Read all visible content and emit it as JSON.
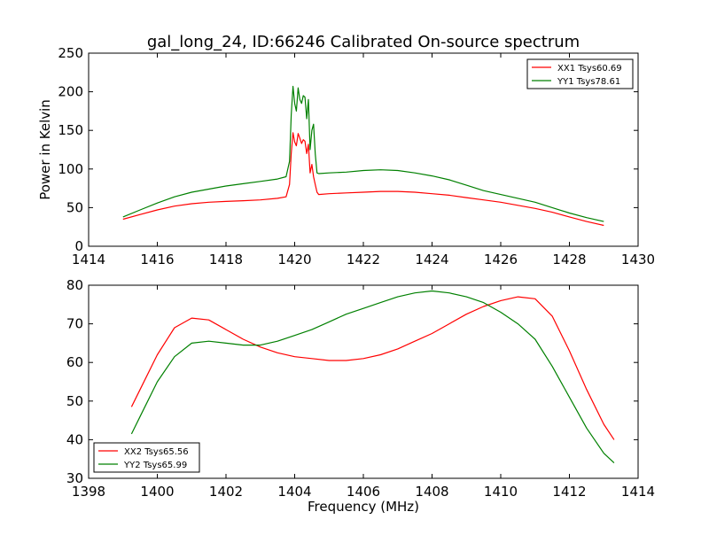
{
  "figure": {
    "title": "gal_long_24, ID:66246 Calibrated On-source spectrum",
    "background": "#ffffff"
  },
  "chart_data": [
    {
      "type": "line",
      "title": "gal_long_24, ID:66246 Calibrated On-source spectrum",
      "xlabel": "",
      "ylabel": "Power in Kelvin",
      "xlim": [
        1414,
        1430
      ],
      "ylim": [
        0,
        250
      ],
      "xticks": [
        1414,
        1416,
        1418,
        1420,
        1422,
        1424,
        1426,
        1428,
        1430
      ],
      "yticks": [
        0,
        50,
        100,
        150,
        200,
        250
      ],
      "grid": false,
      "legend_position": "top-right",
      "series": [
        {
          "name": "XX1 Tsys60.69",
          "color": "#ff0000",
          "x": [
            1415.0,
            1415.5,
            1416.0,
            1416.5,
            1417.0,
            1417.5,
            1418.0,
            1418.5,
            1419.0,
            1419.5,
            1419.75,
            1419.85,
            1419.9,
            1419.95,
            1420.0,
            1420.05,
            1420.1,
            1420.15,
            1420.2,
            1420.25,
            1420.3,
            1420.35,
            1420.4,
            1420.45,
            1420.5,
            1420.55,
            1420.6,
            1420.65,
            1420.7,
            1421.0,
            1421.5,
            1422.0,
            1422.5,
            1423.0,
            1423.5,
            1424.0,
            1424.5,
            1425.0,
            1425.5,
            1426.0,
            1426.5,
            1427.0,
            1427.5,
            1428.0,
            1428.5,
            1429.0
          ],
          "y": [
            35,
            41,
            47,
            52,
            55,
            57,
            58,
            59,
            60,
            62,
            64,
            80,
            120,
            147,
            135,
            130,
            146,
            140,
            133,
            138,
            136,
            120,
            132,
            95,
            106,
            90,
            80,
            70,
            67,
            68,
            69,
            70,
            71,
            71,
            70,
            68,
            66,
            63,
            60,
            57,
            53,
            49,
            44,
            38,
            32,
            27
          ]
        },
        {
          "name": "YY1 Tsys78.61",
          "color": "#008000",
          "x": [
            1415.0,
            1415.5,
            1416.0,
            1416.5,
            1417.0,
            1417.5,
            1418.0,
            1418.5,
            1419.0,
            1419.5,
            1419.75,
            1419.85,
            1419.9,
            1419.95,
            1420.0,
            1420.05,
            1420.1,
            1420.15,
            1420.2,
            1420.25,
            1420.3,
            1420.35,
            1420.4,
            1420.45,
            1420.5,
            1420.55,
            1420.6,
            1420.65,
            1420.7,
            1421.0,
            1421.5,
            1422.0,
            1422.5,
            1423.0,
            1423.5,
            1424.0,
            1424.5,
            1425.0,
            1425.5,
            1426.0,
            1426.5,
            1427.0,
            1427.5,
            1428.0,
            1428.5,
            1429.0
          ],
          "y": [
            38,
            47,
            56,
            64,
            70,
            74,
            78,
            81,
            84,
            87,
            90,
            110,
            170,
            207,
            185,
            175,
            205,
            190,
            185,
            195,
            193,
            165,
            190,
            125,
            150,
            158,
            120,
            95,
            94,
            95,
            96,
            98,
            99,
            98,
            95,
            91,
            86,
            79,
            72,
            67,
            62,
            57,
            50,
            43,
            37,
            32
          ]
        }
      ]
    },
    {
      "type": "line",
      "title": "",
      "xlabel": "Frequency (MHz)",
      "ylabel": "",
      "xlim": [
        1398,
        1414
      ],
      "ylim": [
        30,
        80
      ],
      "xticks": [
        1398,
        1400,
        1402,
        1404,
        1406,
        1408,
        1410,
        1412,
        1414
      ],
      "yticks": [
        30,
        40,
        50,
        60,
        70,
        80
      ],
      "grid": false,
      "legend_position": "bottom-left",
      "series": [
        {
          "name": "XX2 Tsys65.56",
          "color": "#ff0000",
          "x": [
            1399.25,
            1399.5,
            1400.0,
            1400.5,
            1401.0,
            1401.5,
            1402.0,
            1402.5,
            1403.0,
            1403.5,
            1404.0,
            1404.5,
            1405.0,
            1405.5,
            1406.0,
            1406.5,
            1407.0,
            1407.5,
            1408.0,
            1408.5,
            1409.0,
            1409.5,
            1410.0,
            1410.5,
            1411.0,
            1411.5,
            1412.0,
            1412.5,
            1413.0,
            1413.3
          ],
          "y": [
            48.5,
            53,
            62,
            69,
            71.5,
            71,
            68.5,
            66,
            64,
            62.5,
            61.5,
            61,
            60.5,
            60.5,
            61,
            62,
            63.5,
            65.5,
            67.5,
            70,
            72.5,
            74.5,
            76,
            77,
            76.5,
            72,
            63,
            53,
            44,
            40
          ]
        },
        {
          "name": "YY2 Tsys65.99",
          "color": "#008000",
          "x": [
            1399.25,
            1399.5,
            1400.0,
            1400.5,
            1401.0,
            1401.5,
            1402.0,
            1402.5,
            1403.0,
            1403.5,
            1404.0,
            1404.5,
            1405.0,
            1405.5,
            1406.0,
            1406.5,
            1407.0,
            1407.5,
            1408.0,
            1408.5,
            1409.0,
            1409.5,
            1410.0,
            1410.5,
            1411.0,
            1411.5,
            1412.0,
            1412.5,
            1413.0,
            1413.3
          ],
          "y": [
            41.5,
            46,
            55,
            61.5,
            65,
            65.5,
            65,
            64.5,
            64.5,
            65.5,
            67,
            68.5,
            70.5,
            72.5,
            74,
            75.5,
            77,
            78,
            78.5,
            78,
            77,
            75.5,
            73,
            70,
            66,
            59,
            51,
            43,
            36.5,
            34
          ]
        }
      ]
    }
  ]
}
